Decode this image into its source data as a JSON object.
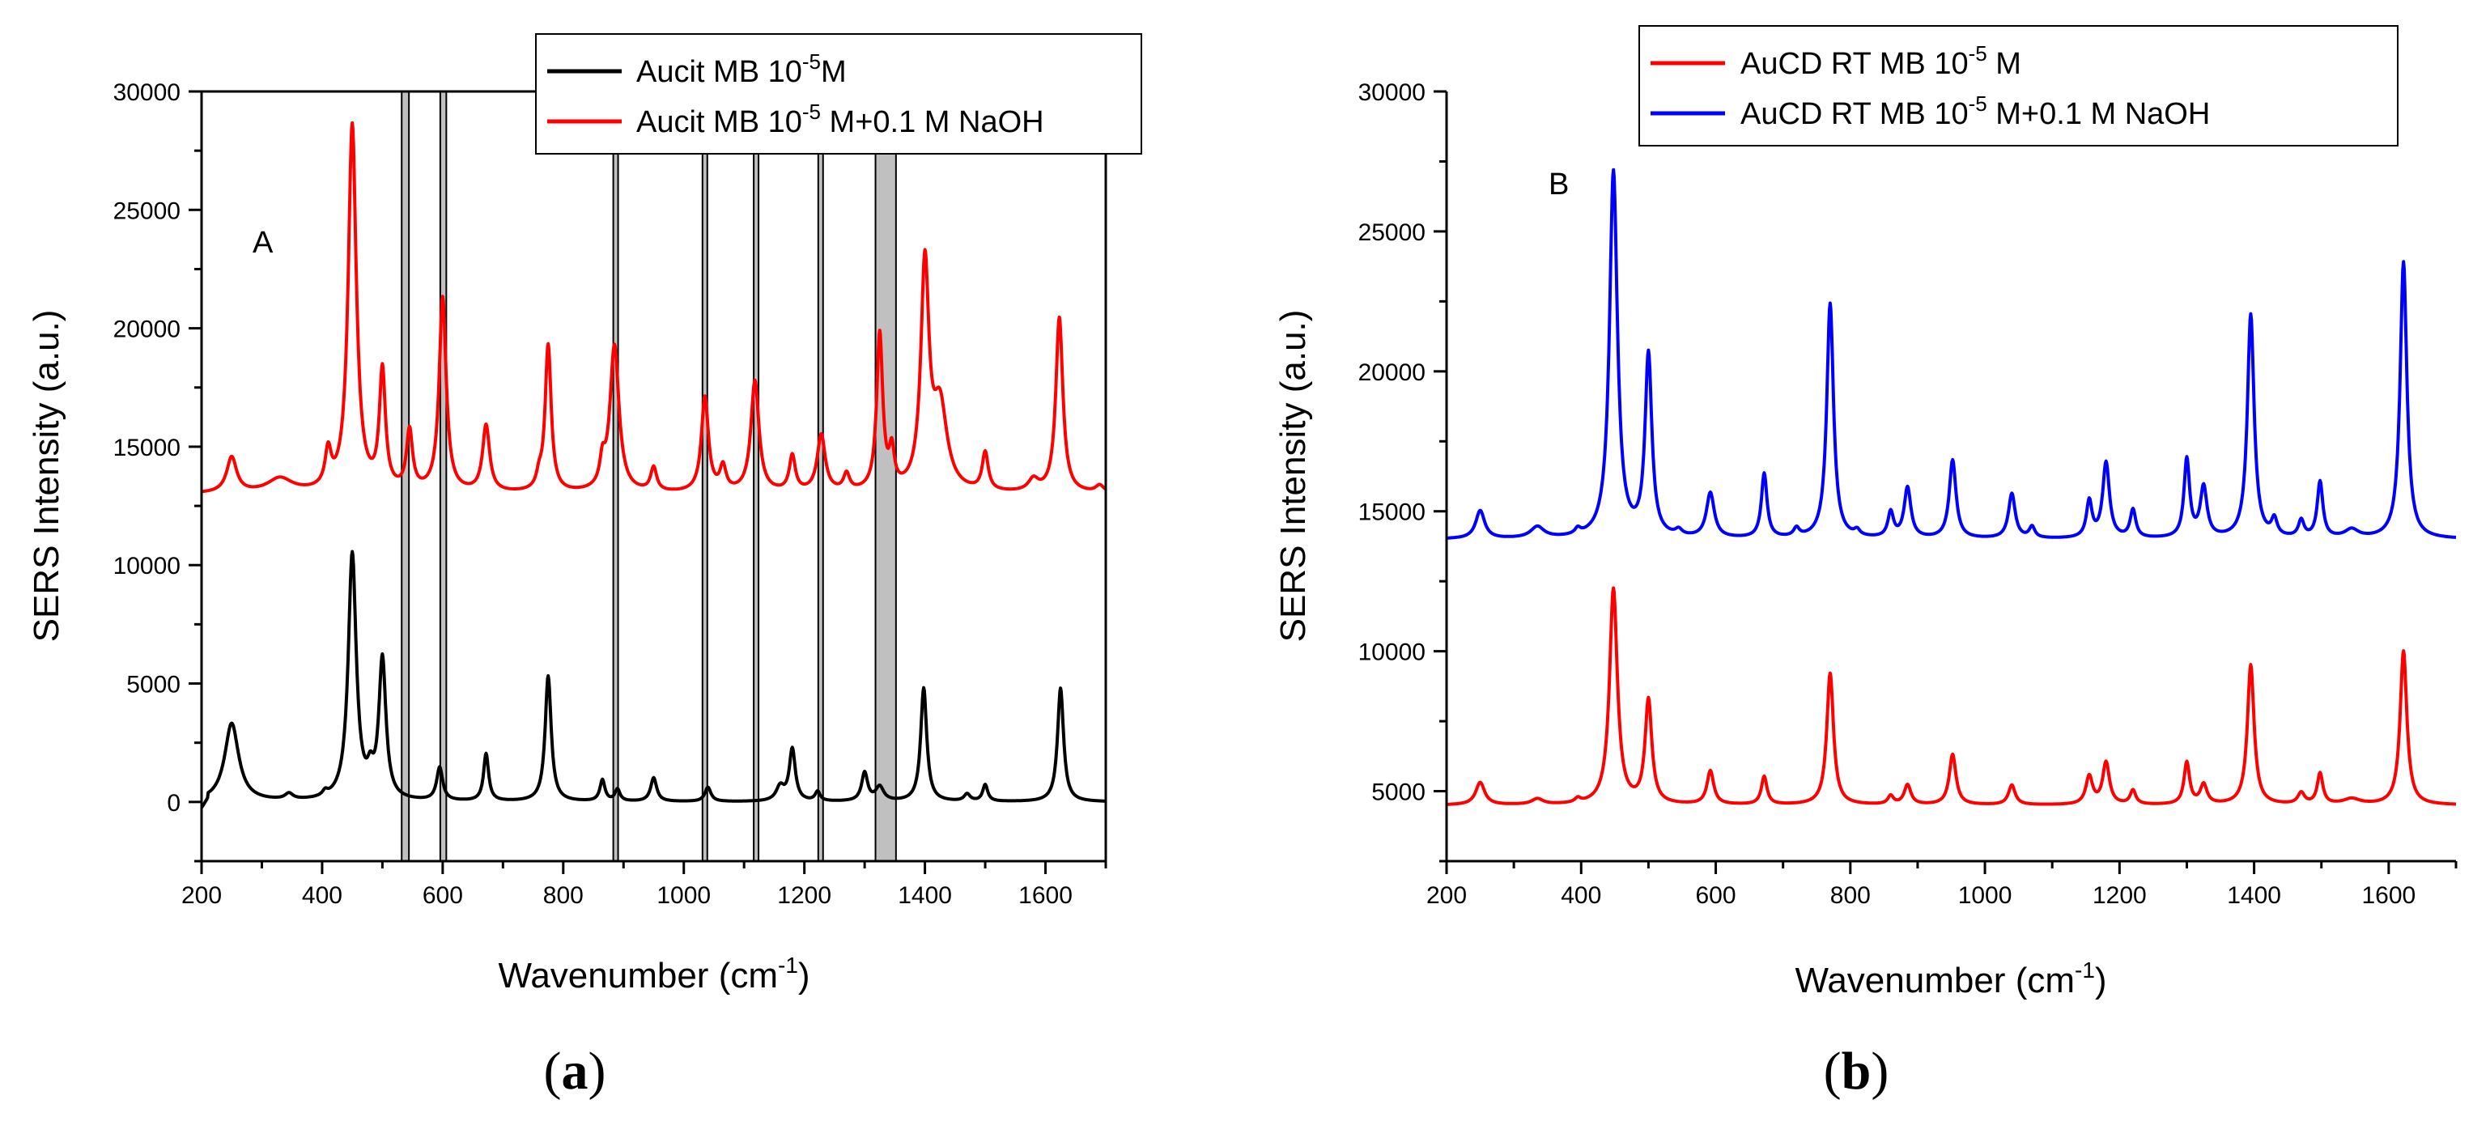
{
  "chart_data": [
    {
      "type": "line",
      "panel_label": "A",
      "caption": {
        "open": "(",
        "letter": "a",
        "close": ")"
      },
      "xlabel": {
        "text": "Wavenumber (cm",
        "sup": "-1",
        "tail": ")"
      },
      "ylabel": "SERS Intensity (a.u.)",
      "xlim": [
        200,
        1700
      ],
      "ylim": [
        -2500,
        30000
      ],
      "xticks": [
        200,
        400,
        600,
        800,
        1000,
        1200,
        1400,
        1600
      ],
      "yticks": [
        0,
        5000,
        10000,
        15000,
        20000,
        25000,
        30000
      ],
      "legend_position": "top-right",
      "highlight_bands": [
        {
          "x0": 532,
          "x1": 544
        },
        {
          "x0": 596,
          "x1": 606
        },
        {
          "x0": 883,
          "x1": 891
        },
        {
          "x0": 1031,
          "x1": 1039
        },
        {
          "x0": 1116,
          "x1": 1124
        },
        {
          "x0": 1223,
          "x1": 1231
        },
        {
          "x0": 1318,
          "x1": 1352
        }
      ],
      "series": [
        {
          "name": "Aucit MB 10-5M",
          "legend": {
            "pre": "Aucit MB 10",
            "sup": "-5",
            "post": "M"
          },
          "color": "#000000",
          "baseline": 0,
          "edges": [
            [
              200,
              -500
            ],
            [
              210,
              -200
            ]
          ],
          "peaks": [
            [
              250,
              3300,
              14
            ],
            [
              345,
              250,
              8
            ],
            [
              405,
              200,
              5
            ],
            [
              450,
              10400,
              8
            ],
            [
              480,
              800,
              6
            ],
            [
              500,
              5900,
              7
            ],
            [
              595,
              1400,
              6
            ],
            [
              672,
              2000,
              5
            ],
            [
              775,
              5300,
              6
            ],
            [
              865,
              900,
              5
            ],
            [
              890,
              500,
              5
            ],
            [
              950,
              1000,
              6
            ],
            [
              1040,
              600,
              6
            ],
            [
              1160,
              600,
              8
            ],
            [
              1180,
              2200,
              6
            ],
            [
              1222,
              400,
              5
            ],
            [
              1300,
              1200,
              6
            ],
            [
              1325,
              600,
              8
            ],
            [
              1398,
              4800,
              6
            ],
            [
              1470,
              300,
              6
            ],
            [
              1500,
              700,
              5
            ],
            [
              1625,
              4800,
              6
            ]
          ]
        },
        {
          "name": "Aucit MB 10-5 M+0.1 M NaOH",
          "legend": {
            "pre": "Aucit MB 10",
            "sup": "-5",
            "post": " M+0.1 M NaOH"
          },
          "color": "#ff0000",
          "baseline": 13000,
          "edges": [],
          "peaks": [
            [
              250,
              1500,
              10
            ],
            [
              330,
              600,
              25
            ],
            [
              410,
              1500,
              6
            ],
            [
              450,
              15500,
              8
            ],
            [
              500,
              5000,
              6
            ],
            [
              545,
              2500,
              6
            ],
            [
              600,
              8200,
              7
            ],
            [
              672,
              2800,
              7
            ],
            [
              760,
              500,
              5
            ],
            [
              775,
              6200,
              6
            ],
            [
              865,
              1000,
              5
            ],
            [
              885,
              6200,
              9
            ],
            [
              950,
              1000,
              6
            ],
            [
              1035,
              4000,
              7
            ],
            [
              1065,
              1000,
              6
            ],
            [
              1118,
              4700,
              8
            ],
            [
              1180,
              1500,
              6
            ],
            [
              1228,
              2400,
              8
            ],
            [
              1270,
              700,
              6
            ],
            [
              1325,
              6600,
              6
            ],
            [
              1345,
              1500,
              5
            ],
            [
              1400,
              9400,
              8
            ],
            [
              1425,
              3500,
              14
            ],
            [
              1500,
              1600,
              6
            ],
            [
              1580,
              500,
              10
            ],
            [
              1623,
              7400,
              7
            ],
            [
              1690,
              300,
              8
            ]
          ]
        }
      ]
    },
    {
      "type": "line",
      "panel_label": "B",
      "caption": {
        "open": "(",
        "letter": "b",
        "close": ")"
      },
      "xlabel": {
        "text": "Wavenumber (cm",
        "sup": "-1",
        "tail": ")"
      },
      "ylabel": "SERS Intensity (a.u.)",
      "xlim": [
        200,
        1700
      ],
      "ylim": [
        2500,
        30000
      ],
      "xticks": [
        200,
        400,
        600,
        800,
        1000,
        1200,
        1400,
        1600
      ],
      "yticks": [
        5000,
        10000,
        15000,
        20000,
        25000,
        30000
      ],
      "legend_position": "top-right",
      "highlight_bands": [],
      "series": [
        {
          "name": "AuCD RT MB 10-5 M",
          "legend": {
            "pre": "AuCD RT MB 10",
            "sup": "-5",
            "post": " M"
          },
          "color": "#ff0000",
          "baseline": 4500,
          "edges": [],
          "peaks": [
            [
              250,
              800,
              8
            ],
            [
              335,
              200,
              10
            ],
            [
              395,
              150,
              5
            ],
            [
              448,
              7700,
              7
            ],
            [
              500,
              3700,
              6
            ],
            [
              592,
              1200,
              6
            ],
            [
              672,
              1000,
              5
            ],
            [
              770,
              4700,
              6
            ],
            [
              860,
              300,
              5
            ],
            [
              885,
              700,
              6
            ],
            [
              952,
              1800,
              6
            ],
            [
              1040,
              700,
              6
            ],
            [
              1155,
              1000,
              6
            ],
            [
              1180,
              1500,
              6
            ],
            [
              1220,
              500,
              5
            ],
            [
              1300,
              1500,
              5
            ],
            [
              1325,
              700,
              6
            ],
            [
              1395,
              5000,
              6
            ],
            [
              1470,
              400,
              6
            ],
            [
              1498,
              1100,
              5
            ],
            [
              1545,
              200,
              15
            ],
            [
              1622,
              5500,
              6
            ]
          ]
        },
        {
          "name": "AuCD RT MB 10-5 M+0.1 M NaOH",
          "legend": {
            "pre": "AuCD RT MB 10",
            "sup": "-5",
            "post": " M+0.1 M NaOH"
          },
          "color": "#0000ff",
          "baseline": 14000,
          "edges": [],
          "peaks": [
            [
              250,
              1000,
              8
            ],
            [
              335,
              400,
              12
            ],
            [
              395,
              200,
              5
            ],
            [
              448,
              13100,
              7
            ],
            [
              500,
              6500,
              6
            ],
            [
              545,
              200,
              6
            ],
            [
              592,
              1600,
              7
            ],
            [
              672,
              2300,
              5
            ],
            [
              720,
              300,
              5
            ],
            [
              770,
              8400,
              6
            ],
            [
              810,
              200,
              5
            ],
            [
              860,
              900,
              5
            ],
            [
              885,
              1800,
              6
            ],
            [
              952,
              2800,
              6
            ],
            [
              1040,
              1600,
              6
            ],
            [
              1070,
              400,
              5
            ],
            [
              1155,
              1300,
              5
            ],
            [
              1180,
              2700,
              6
            ],
            [
              1220,
              1000,
              5
            ],
            [
              1300,
              2800,
              5
            ],
            [
              1325,
              1800,
              6
            ],
            [
              1395,
              8000,
              6
            ],
            [
              1430,
              600,
              5
            ],
            [
              1470,
              600,
              5
            ],
            [
              1498,
              2000,
              5
            ],
            [
              1545,
              300,
              12
            ],
            [
              1622,
              9900,
              6
            ]
          ]
        }
      ]
    }
  ]
}
